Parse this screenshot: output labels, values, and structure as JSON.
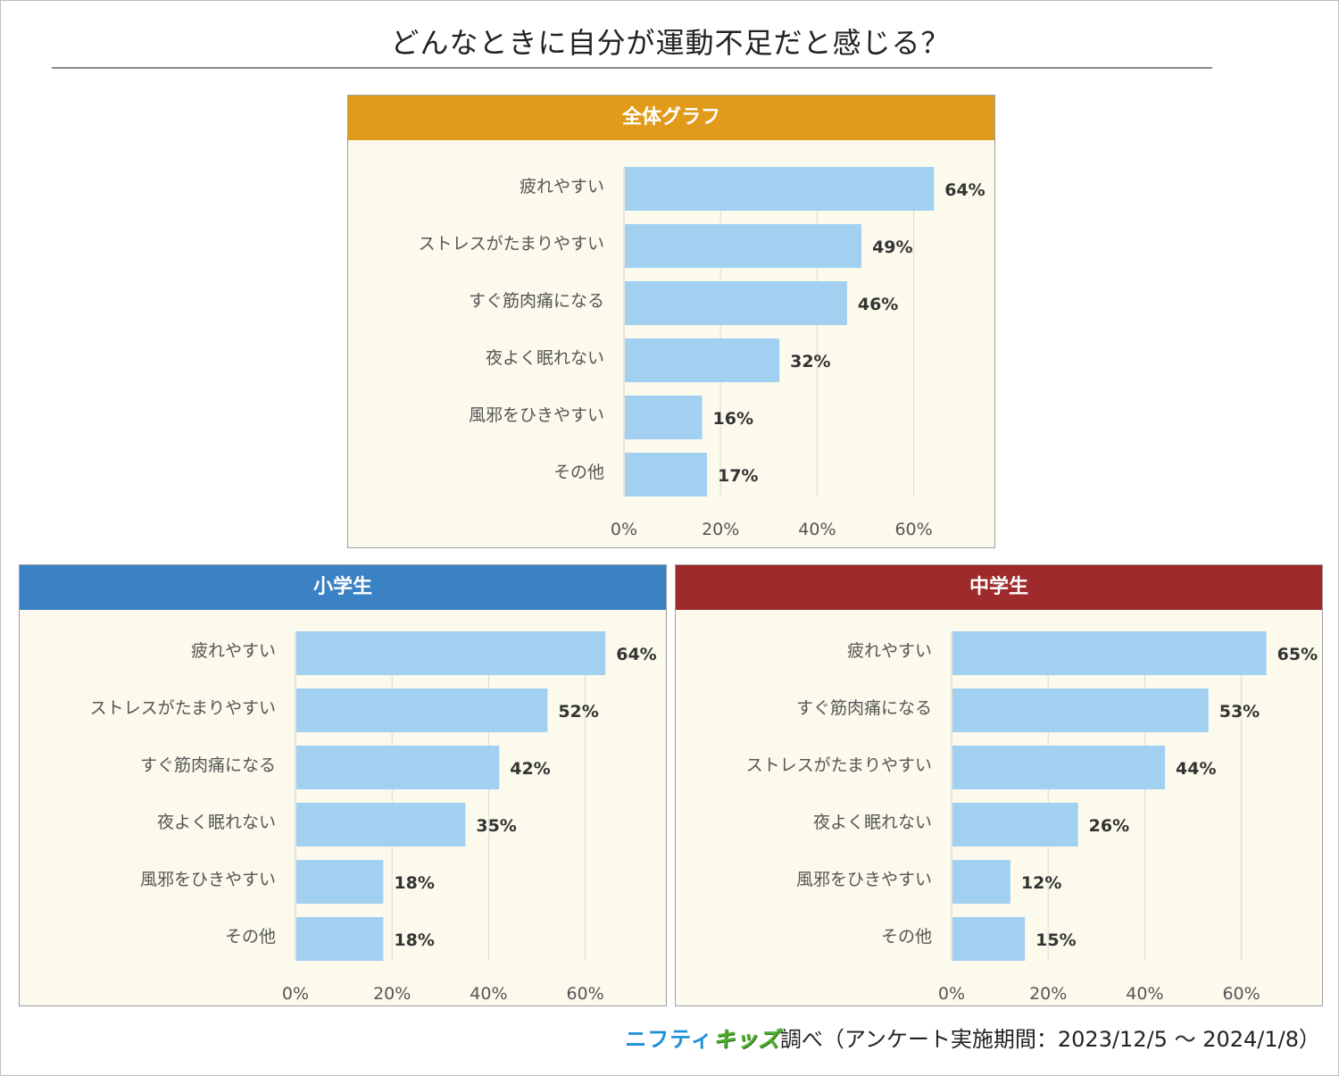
{
  "title": "どんなときに自分が運動不足だと感じる？",
  "footer": {
    "logo_part1": "ニフティ",
    "logo_part2": "キッズ",
    "text": "調べ（アンケート実施期間：2023/12/5 ～ 2024/1/8）"
  },
  "colors": {
    "bar": "#a2d0f0",
    "grid": "#d9d9d9",
    "panel_bg": "#fcfaec"
  },
  "chart_data": [
    {
      "type": "bar",
      "orientation": "horizontal",
      "title": "全体グラフ",
      "header_color": "#e09b1b",
      "categories": [
        "疲れやすい",
        "ストレスがたまりやすい",
        "すぐ筋肉痛になる",
        "夜よく眠れない",
        "風邪をひきやすい",
        "その他"
      ],
      "values": [
        64,
        49,
        46,
        32,
        16,
        17
      ],
      "value_labels": [
        "64%",
        "49%",
        "46%",
        "32%",
        "16%",
        "17%"
      ],
      "xticks": [
        "0%",
        "20%",
        "40%",
        "60%"
      ],
      "xlim": [
        0,
        70
      ],
      "grid": true
    },
    {
      "type": "bar",
      "orientation": "horizontal",
      "title": "小学生",
      "header_color": "#3b82c4",
      "categories": [
        "疲れやすい",
        "ストレスがたまりやすい",
        "すぐ筋肉痛になる",
        "夜よく眠れない",
        "風邪をひきやすい",
        "その他"
      ],
      "values": [
        64,
        52,
        42,
        35,
        18,
        18
      ],
      "value_labels": [
        "64%",
        "52%",
        "42%",
        "35%",
        "18%",
        "18%"
      ],
      "xticks": [
        "0%",
        "20%",
        "40%",
        "60%"
      ],
      "xlim": [
        0,
        70
      ],
      "grid": true
    },
    {
      "type": "bar",
      "orientation": "horizontal",
      "title": "中学生",
      "header_color": "#9e2a2b",
      "categories": [
        "疲れやすい",
        "すぐ筋肉痛になる",
        "ストレスがたまりやすい",
        "夜よく眠れない",
        "風邪をひきやすい",
        "その他"
      ],
      "values": [
        65,
        53,
        44,
        26,
        12,
        15
      ],
      "value_labels": [
        "65%",
        "53%",
        "44%",
        "26%",
        "12%",
        "15%"
      ],
      "xticks": [
        "0%",
        "20%",
        "40%",
        "60%"
      ],
      "xlim": [
        0,
        70
      ],
      "grid": true
    }
  ]
}
